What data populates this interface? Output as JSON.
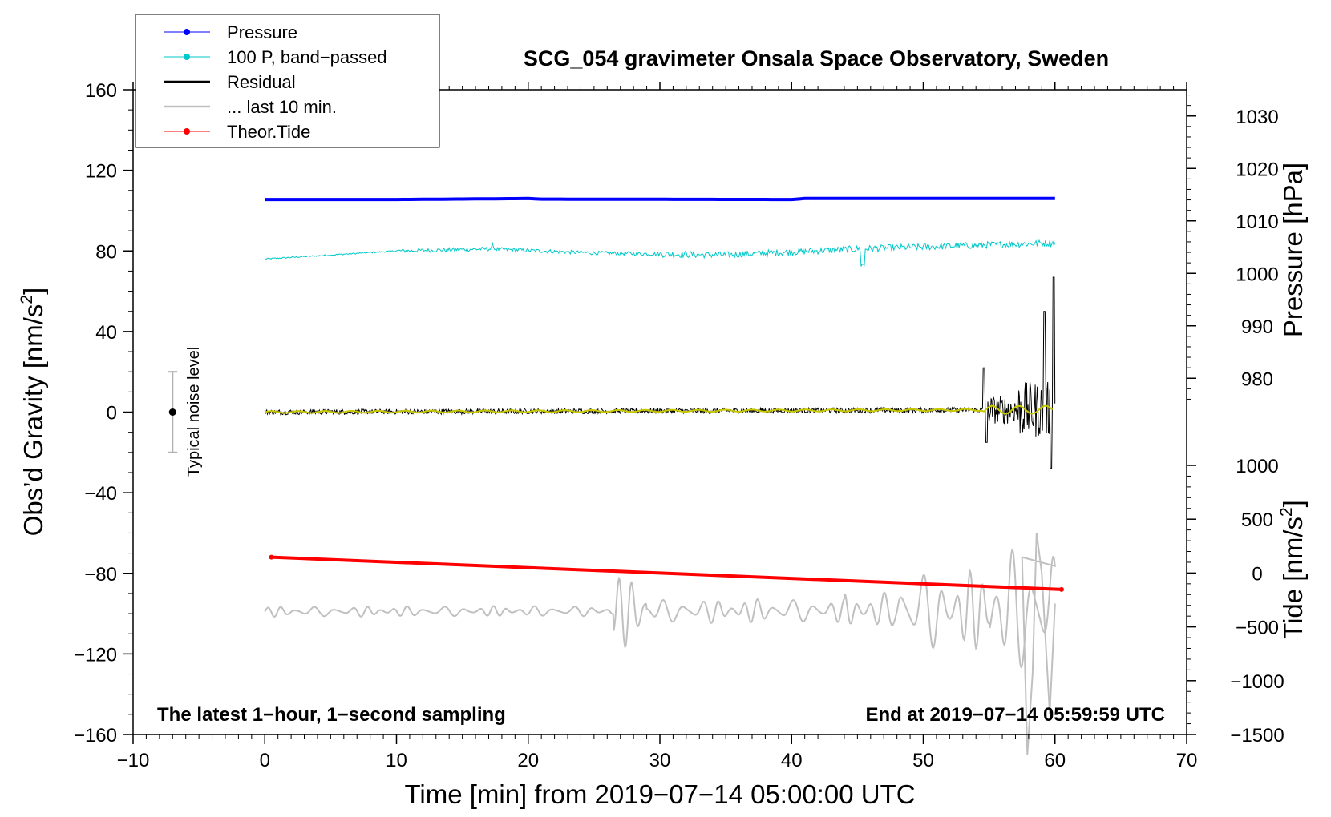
{
  "chart_data": {
    "type": "line",
    "title": "SCG_054 gravimeter Onsala Space Observatory, Sweden",
    "xlabel": "Time [min] from 2019−07−14 05:00:00 UTC",
    "ylabel_left": "Obs’d Gravity [nm/s",
    "ylabel_right_top": "Pressure [hPa]",
    "ylabel_right_bottom": "Tide [nm/s",
    "superscript": "2",
    "close_bracket": "]",
    "xlim": [
      -10,
      70
    ],
    "ylim_left": [
      -160,
      160
    ],
    "pressure_lim": [
      975,
      1035
    ],
    "tide_lim": [
      -1500,
      1000
    ],
    "x_ticks": [
      "−10",
      "0",
      "10",
      "20",
      "30",
      "40",
      "50",
      "60",
      "70"
    ],
    "x_tick_values": [
      -10,
      0,
      10,
      20,
      30,
      40,
      50,
      60,
      70
    ],
    "y_left_ticks": [
      "−160",
      "−120",
      "−80",
      "−40",
      "0",
      "40",
      "80",
      "120",
      "160"
    ],
    "y_left_tick_values": [
      -160,
      -120,
      -80,
      -40,
      0,
      40,
      80,
      120,
      160
    ],
    "pressure_ticks": [
      "980",
      "990",
      "1000",
      "1010",
      "1020",
      "1030"
    ],
    "pressure_tick_values": [
      980,
      990,
      1000,
      1010,
      1020,
      1030
    ],
    "tide_ticks": [
      "−1500",
      "−1000",
      "−500",
      "0",
      "500",
      "1000"
    ],
    "tide_tick_values": [
      -1500,
      -1000,
      -500,
      0,
      500,
      1000
    ],
    "legend": [
      {
        "label": "Pressure",
        "color": "#0000ff",
        "marker": true
      },
      {
        "label": "100 P, band−passed",
        "color": "#00c8c8",
        "marker": true
      },
      {
        "label": "Residual",
        "color": "#000000",
        "marker": false
      },
      {
        "label": "... last 10 min.",
        "color": "#c0c0c0",
        "marker": false
      },
      {
        "label": "Theor.Tide",
        "color": "#ff0000",
        "marker": true
      }
    ],
    "annotations": {
      "bottom_left": "The latest 1−hour, 1−second sampling",
      "bottom_right": "End at 2019−07−14 05:59:59 UTC",
      "noise_label": "Typical noise level"
    },
    "noise_bar": {
      "x": -7,
      "center": 0,
      "half_range": 20
    },
    "series": [
      {
        "name": "Pressure",
        "color": "#0000ff",
        "axis": "left",
        "x": [
          0,
          10,
          20,
          21,
          40,
          41,
          60
        ],
        "y": [
          105.5,
          105.5,
          106,
          105.7,
          105.5,
          106,
          106
        ]
      },
      {
        "name": "100 P, band−passed",
        "color": "#00c8c8",
        "axis": "left",
        "x": [
          0,
          5,
          10,
          17,
          25,
          35,
          45,
          50,
          55,
          60
        ],
        "y": [
          76,
          78,
          80,
          81,
          79,
          78,
          81,
          82,
          83,
          84
        ]
      },
      {
        "name": "Theor.Tide",
        "color": "#ff0000",
        "axis": "left",
        "x": [
          0.5,
          60.5
        ],
        "y": [
          -72,
          -88
        ]
      },
      {
        "name": "Residual",
        "color": "#000000",
        "axis": "left",
        "x": [
          0,
          54.5,
          55,
          56,
          58,
          59,
          60
        ],
        "y": [
          0,
          1,
          22,
          -15,
          28,
          50,
          67
        ]
      },
      {
        "name": "... last 10 min.",
        "color": "#c0c0c0",
        "axis": "left",
        "x": [
          0,
          27.3,
          27.8,
          49,
          52,
          56,
          58,
          59,
          60
        ],
        "y": [
          -99,
          -80,
          -118,
          -110,
          -77,
          -72,
          -170,
          -160,
          -95
        ]
      }
    ]
  }
}
